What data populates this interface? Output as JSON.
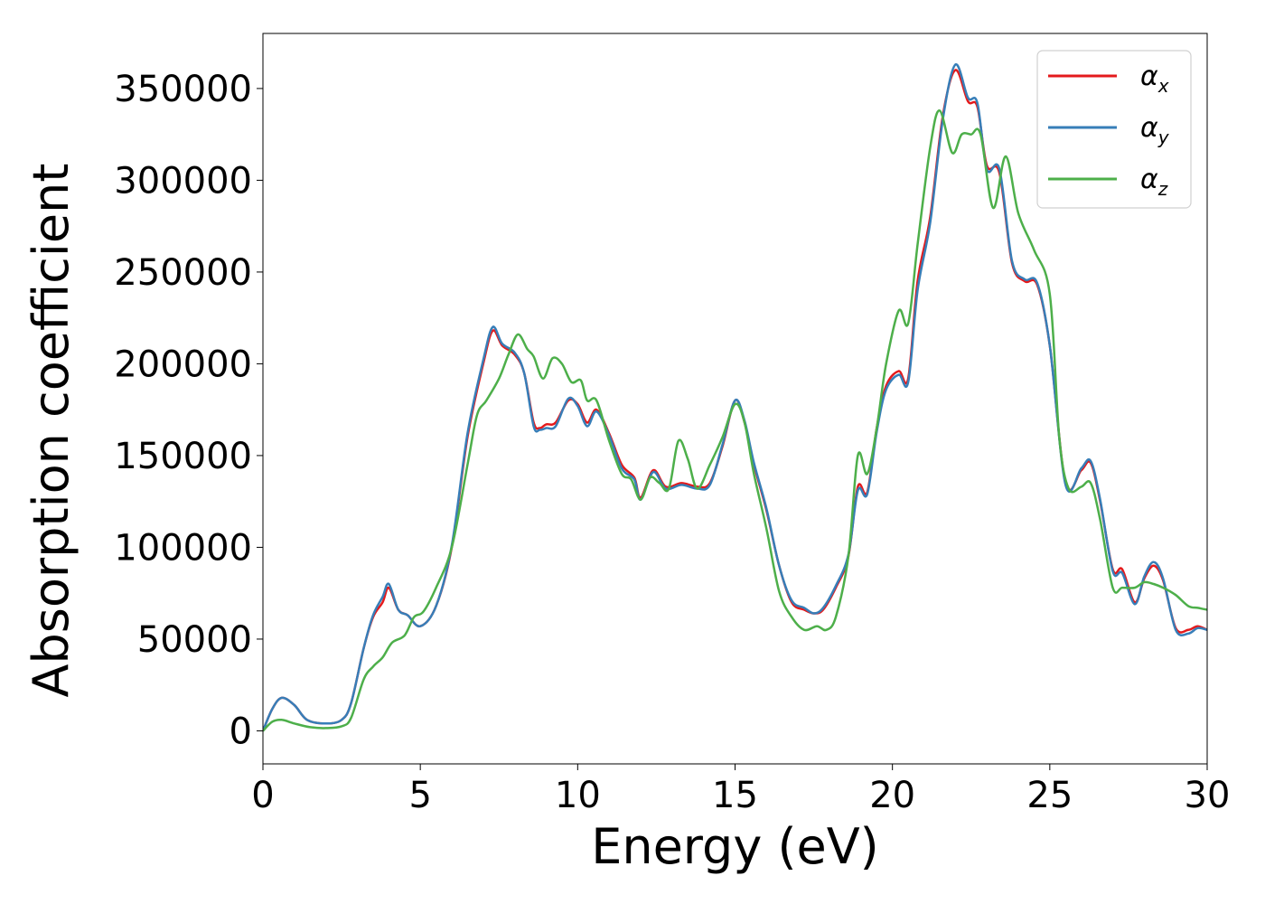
{
  "chart_data": {
    "type": "line",
    "title": "",
    "xlabel": "Energy (eV)",
    "ylabel": "Absorption coefficient",
    "xlim": [
      0,
      30
    ],
    "ylim": [
      -18000,
      380000
    ],
    "x_ticks": [
      "0",
      "5",
      "10",
      "15",
      "20",
      "25",
      "30"
    ],
    "y_ticks": [
      "0",
      "50000",
      "100000",
      "150000",
      "200000",
      "250000",
      "300000",
      "350000"
    ],
    "grid": false,
    "legend_position": "top-right",
    "series": [
      {
        "name": "α",
        "subscript": "x",
        "color": "#e41a1c",
        "points": [
          [
            0,
            0
          ],
          [
            0.3,
            12000
          ],
          [
            0.6,
            18000
          ],
          [
            1.0,
            14000
          ],
          [
            1.4,
            6000
          ],
          [
            2.0,
            4000
          ],
          [
            2.5,
            6000
          ],
          [
            2.8,
            15000
          ],
          [
            3.2,
            45000
          ],
          [
            3.5,
            62000
          ],
          [
            3.8,
            70000
          ],
          [
            4.0,
            78000
          ],
          [
            4.3,
            66000
          ],
          [
            4.6,
            63000
          ],
          [
            5.0,
            57000
          ],
          [
            5.5,
            68000
          ],
          [
            6.0,
            100000
          ],
          [
            6.5,
            160000
          ],
          [
            7.0,
            200000
          ],
          [
            7.3,
            218000
          ],
          [
            7.6,
            210000
          ],
          [
            8.0,
            205000
          ],
          [
            8.3,
            195000
          ],
          [
            8.6,
            168000
          ],
          [
            8.8,
            165000
          ],
          [
            9.0,
            167000
          ],
          [
            9.3,
            168000
          ],
          [
            9.7,
            180000
          ],
          [
            10.0,
            178000
          ],
          [
            10.3,
            168000
          ],
          [
            10.6,
            175000
          ],
          [
            11.0,
            162000
          ],
          [
            11.4,
            145000
          ],
          [
            11.8,
            138000
          ],
          [
            12.0,
            127000
          ],
          [
            12.4,
            142000
          ],
          [
            12.8,
            133000
          ],
          [
            13.3,
            135000
          ],
          [
            13.8,
            133000
          ],
          [
            14.2,
            135000
          ],
          [
            14.6,
            155000
          ],
          [
            15.0,
            180000
          ],
          [
            15.3,
            168000
          ],
          [
            15.6,
            145000
          ],
          [
            16.0,
            120000
          ],
          [
            16.4,
            90000
          ],
          [
            16.8,
            70000
          ],
          [
            17.2,
            66000
          ],
          [
            17.5,
            64000
          ],
          [
            17.8,
            66000
          ],
          [
            18.2,
            78000
          ],
          [
            18.6,
            95000
          ],
          [
            18.9,
            133000
          ],
          [
            19.2,
            130000
          ],
          [
            19.5,
            165000
          ],
          [
            19.8,
            188000
          ],
          [
            20.2,
            196000
          ],
          [
            20.5,
            192000
          ],
          [
            20.8,
            245000
          ],
          [
            21.2,
            280000
          ],
          [
            21.6,
            335000
          ],
          [
            22.0,
            360000
          ],
          [
            22.4,
            343000
          ],
          [
            22.7,
            340000
          ],
          [
            23.0,
            308000
          ],
          [
            23.4,
            304000
          ],
          [
            23.8,
            255000
          ],
          [
            24.2,
            245000
          ],
          [
            24.6,
            243000
          ],
          [
            25.0,
            210000
          ],
          [
            25.5,
            135000
          ],
          [
            26.0,
            142000
          ],
          [
            26.3,
            146000
          ],
          [
            26.6,
            125000
          ],
          [
            27.0,
            88000
          ],
          [
            27.3,
            88000
          ],
          [
            27.7,
            70000
          ],
          [
            28.0,
            83000
          ],
          [
            28.3,
            90000
          ],
          [
            28.6,
            82000
          ],
          [
            29.0,
            56000
          ],
          [
            29.4,
            55000
          ],
          [
            29.7,
            57000
          ],
          [
            30.0,
            55000
          ]
        ]
      },
      {
        "name": "α",
        "subscript": "y",
        "color": "#377eb8",
        "points": [
          [
            0,
            0
          ],
          [
            0.3,
            12000
          ],
          [
            0.6,
            18000
          ],
          [
            1.0,
            14000
          ],
          [
            1.4,
            6000
          ],
          [
            2.0,
            4000
          ],
          [
            2.5,
            6000
          ],
          [
            2.8,
            15000
          ],
          [
            3.2,
            45000
          ],
          [
            3.5,
            63000
          ],
          [
            3.8,
            73000
          ],
          [
            4.0,
            80000
          ],
          [
            4.3,
            66000
          ],
          [
            4.6,
            63000
          ],
          [
            5.0,
            57000
          ],
          [
            5.5,
            68000
          ],
          [
            6.0,
            101000
          ],
          [
            6.5,
            162000
          ],
          [
            7.0,
            202000
          ],
          [
            7.3,
            220000
          ],
          [
            7.6,
            211000
          ],
          [
            8.0,
            206000
          ],
          [
            8.3,
            195000
          ],
          [
            8.6,
            166000
          ],
          [
            8.8,
            164000
          ],
          [
            9.0,
            165000
          ],
          [
            9.3,
            166000
          ],
          [
            9.7,
            181000
          ],
          [
            10.0,
            177000
          ],
          [
            10.3,
            166000
          ],
          [
            10.6,
            174000
          ],
          [
            11.0,
            161000
          ],
          [
            11.4,
            143000
          ],
          [
            11.8,
            137000
          ],
          [
            12.0,
            126000
          ],
          [
            12.4,
            141000
          ],
          [
            12.8,
            132000
          ],
          [
            13.3,
            134000
          ],
          [
            13.8,
            132000
          ],
          [
            14.2,
            134000
          ],
          [
            14.6,
            156000
          ],
          [
            15.0,
            180000
          ],
          [
            15.3,
            169000
          ],
          [
            15.6,
            146000
          ],
          [
            16.0,
            121000
          ],
          [
            16.4,
            90000
          ],
          [
            16.8,
            71000
          ],
          [
            17.2,
            67000
          ],
          [
            17.5,
            64000
          ],
          [
            17.8,
            67000
          ],
          [
            18.2,
            79000
          ],
          [
            18.6,
            96000
          ],
          [
            18.9,
            131000
          ],
          [
            19.2,
            129000
          ],
          [
            19.5,
            163000
          ],
          [
            19.8,
            186000
          ],
          [
            20.2,
            194000
          ],
          [
            20.5,
            190000
          ],
          [
            20.8,
            240000
          ],
          [
            21.2,
            277000
          ],
          [
            21.6,
            333000
          ],
          [
            22.0,
            363000
          ],
          [
            22.4,
            345000
          ],
          [
            22.7,
            342000
          ],
          [
            23.0,
            306000
          ],
          [
            23.4,
            306000
          ],
          [
            23.8,
            256000
          ],
          [
            24.2,
            246000
          ],
          [
            24.6,
            244000
          ],
          [
            25.0,
            210000
          ],
          [
            25.5,
            134000
          ],
          [
            26.0,
            143000
          ],
          [
            26.3,
            147000
          ],
          [
            26.6,
            126000
          ],
          [
            27.0,
            87000
          ],
          [
            27.3,
            86000
          ],
          [
            27.7,
            69000
          ],
          [
            28.0,
            84000
          ],
          [
            28.3,
            92000
          ],
          [
            28.6,
            83000
          ],
          [
            29.0,
            55000
          ],
          [
            29.4,
            53000
          ],
          [
            29.7,
            56000
          ],
          [
            30.0,
            55000
          ]
        ]
      },
      {
        "name": "α",
        "subscript": "z",
        "color": "#4daf4a",
        "points": [
          [
            0,
            0
          ],
          [
            0.3,
            5000
          ],
          [
            0.6,
            6000
          ],
          [
            1.0,
            4000
          ],
          [
            1.5,
            2000
          ],
          [
            2.0,
            1500
          ],
          [
            2.5,
            2500
          ],
          [
            2.8,
            7000
          ],
          [
            3.2,
            28000
          ],
          [
            3.5,
            35000
          ],
          [
            3.8,
            40000
          ],
          [
            4.1,
            48000
          ],
          [
            4.5,
            52000
          ],
          [
            4.8,
            62000
          ],
          [
            5.1,
            65000
          ],
          [
            5.5,
            78000
          ],
          [
            6.0,
            100000
          ],
          [
            6.5,
            145000
          ],
          [
            6.8,
            172000
          ],
          [
            7.1,
            180000
          ],
          [
            7.5,
            192000
          ],
          [
            7.8,
            205000
          ],
          [
            8.1,
            216000
          ],
          [
            8.4,
            208000
          ],
          [
            8.6,
            204000
          ],
          [
            8.9,
            192000
          ],
          [
            9.2,
            203000
          ],
          [
            9.5,
            200000
          ],
          [
            9.8,
            190000
          ],
          [
            10.1,
            191000
          ],
          [
            10.3,
            180000
          ],
          [
            10.6,
            180000
          ],
          [
            11.0,
            158000
          ],
          [
            11.4,
            140000
          ],
          [
            11.7,
            137000
          ],
          [
            12.0,
            126000
          ],
          [
            12.3,
            138000
          ],
          [
            12.6,
            135000
          ],
          [
            12.9,
            132000
          ],
          [
            13.2,
            158000
          ],
          [
            13.5,
            148000
          ],
          [
            13.8,
            132000
          ],
          [
            14.2,
            145000
          ],
          [
            14.6,
            160000
          ],
          [
            15.0,
            178000
          ],
          [
            15.3,
            168000
          ],
          [
            15.6,
            140000
          ],
          [
            16.0,
            110000
          ],
          [
            16.4,
            76000
          ],
          [
            16.8,
            62000
          ],
          [
            17.2,
            55000
          ],
          [
            17.6,
            57000
          ],
          [
            17.9,
            55000
          ],
          [
            18.2,
            62000
          ],
          [
            18.6,
            95000
          ],
          [
            18.9,
            150000
          ],
          [
            19.2,
            140000
          ],
          [
            19.5,
            165000
          ],
          [
            19.8,
            200000
          ],
          [
            20.2,
            229000
          ],
          [
            20.5,
            222000
          ],
          [
            20.8,
            265000
          ],
          [
            21.2,
            318000
          ],
          [
            21.5,
            338000
          ],
          [
            21.9,
            315000
          ],
          [
            22.2,
            325000
          ],
          [
            22.5,
            325000
          ],
          [
            22.8,
            325000
          ],
          [
            23.2,
            285000
          ],
          [
            23.6,
            313000
          ],
          [
            24.0,
            282000
          ],
          [
            24.5,
            262000
          ],
          [
            25.0,
            238000
          ],
          [
            25.3,
            160000
          ],
          [
            25.6,
            132000
          ],
          [
            26.0,
            133000
          ],
          [
            26.3,
            135000
          ],
          [
            26.6,
            115000
          ],
          [
            27.0,
            78000
          ],
          [
            27.3,
            78000
          ],
          [
            27.7,
            78000
          ],
          [
            28.0,
            81000
          ],
          [
            28.3,
            80000
          ],
          [
            28.6,
            78000
          ],
          [
            29.0,
            74000
          ],
          [
            29.4,
            68000
          ],
          [
            29.7,
            67000
          ],
          [
            30.0,
            66000
          ]
        ]
      }
    ]
  }
}
